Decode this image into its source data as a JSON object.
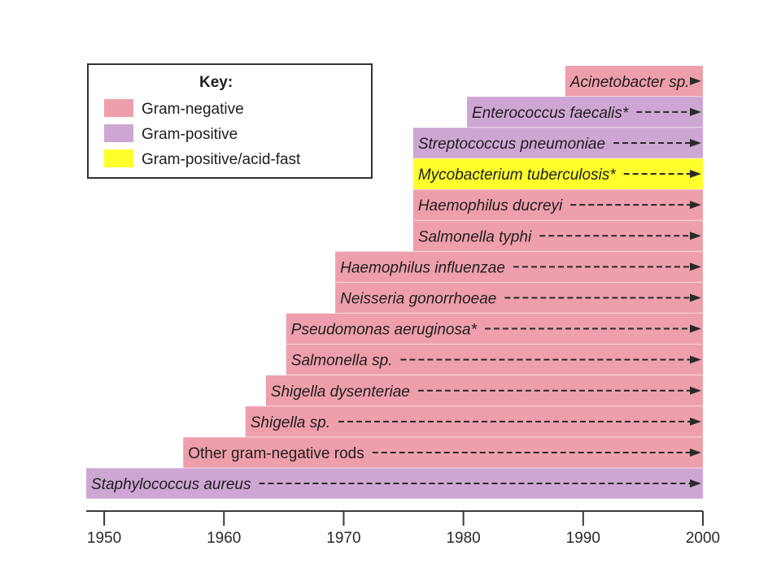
{
  "chart_data": {
    "type": "bar",
    "orientation": "horizontal",
    "xlim": [
      1948.5,
      2000
    ],
    "xticks": [
      "1950",
      "1960",
      "1970",
      "1980",
      "1990",
      "2000"
    ],
    "grid": false,
    "legend_position": "top-left",
    "legend": {
      "title": "Key:",
      "entries": [
        {
          "label": "Gram-negative",
          "color": "#ee9fab"
        },
        {
          "label": "Gram-positive",
          "color": "#cea6d3"
        },
        {
          "label": "Gram-positive/acid-fast",
          "color": "#ffff2c"
        }
      ]
    },
    "bars": [
      {
        "label": "Acinetobacter sp.",
        "start": 1988.5,
        "end": 2000,
        "group": 0
      },
      {
        "label": "Enterococcus faecalis*",
        "start": 1980.3,
        "end": 2000,
        "group": 1
      },
      {
        "label": "Streptococcus pneumoniae",
        "start": 1975.8,
        "end": 2000,
        "group": 1
      },
      {
        "label": "Mycobacterium tuberculosis*",
        "start": 1975.8,
        "end": 2000,
        "group": 2
      },
      {
        "label": "Haemophilus ducreyi",
        "start": 1975.8,
        "end": 2000,
        "group": 0
      },
      {
        "label": "Salmonella typhi",
        "start": 1975.8,
        "end": 2000,
        "group": 0
      },
      {
        "label": "Haemophilus influenzae",
        "start": 1969.3,
        "end": 2000,
        "group": 0
      },
      {
        "label": "Neisseria gonorrhoeae",
        "start": 1969.3,
        "end": 2000,
        "group": 0
      },
      {
        "label": "Pseudomonas aeruginosa*",
        "start": 1965.2,
        "end": 2000,
        "group": 0
      },
      {
        "label": "Salmonella sp.",
        "start": 1965.2,
        "end": 2000,
        "group": 0
      },
      {
        "label": "Shigella dysenteriae",
        "start": 1963.5,
        "end": 2000,
        "group": 0
      },
      {
        "label": "Shigella sp.",
        "start": 1961.8,
        "end": 2000,
        "group": 0
      },
      {
        "label": "Other gram-negative rods",
        "start": 1956.6,
        "end": 2000,
        "group": 0
      },
      {
        "label": "Staphylococcus aureus",
        "start": 1948.5,
        "end": 2000,
        "group": 1
      }
    ]
  }
}
